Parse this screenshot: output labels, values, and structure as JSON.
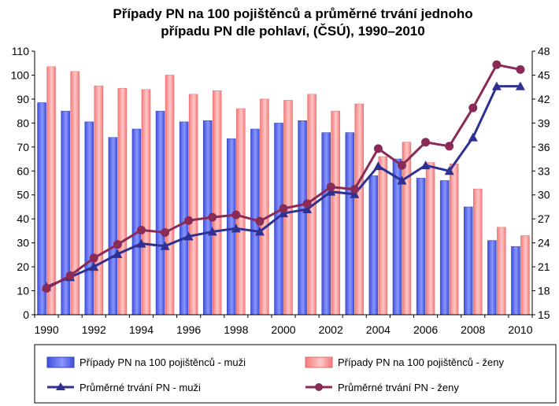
{
  "chart_data": {
    "type": "bar",
    "title_line1": "Případy PN na 100 pojištěnců a průměrné trvání jednoho",
    "title_line2": "případu PN dle pohlaví, (ČSÚ), 1990–2010",
    "x": [
      1990,
      1991,
      1992,
      1993,
      1994,
      1995,
      1996,
      1997,
      1998,
      1999,
      2000,
      2001,
      2002,
      2003,
      2004,
      2005,
      2006,
      2007,
      2008,
      2009,
      2010
    ],
    "x_tick_labels": [
      "1990",
      "1992",
      "1994",
      "1996",
      "1998",
      "2000",
      "2002",
      "2004",
      "2006",
      "2008",
      "2010"
    ],
    "y_left": {
      "min": 0,
      "max": 110,
      "step": 10,
      "ticks": [
        "0",
        "10",
        "20",
        "30",
        "40",
        "50",
        "60",
        "70",
        "80",
        "90",
        "100",
        "110"
      ]
    },
    "y_right": {
      "min": 15,
      "max": 48,
      "step": 3,
      "ticks": [
        "15",
        "18",
        "21",
        "24",
        "27",
        "30",
        "33",
        "36",
        "39",
        "42",
        "45",
        "48"
      ]
    },
    "grid": false,
    "legend_position": "bottom",
    "series": [
      {
        "name": "Případy PN na 100 pojištěnců - muži",
        "kind": "bar",
        "axis": "left",
        "color": "#5a6fe8",
        "values": [
          88.5,
          85,
          80.5,
          74,
          77.5,
          85,
          80.5,
          81,
          73.5,
          77.5,
          80,
          81,
          76,
          76,
          58,
          65,
          57,
          56,
          45,
          31,
          28.5
        ]
      },
      {
        "name": "Případy PN na 100 pojištěnců - ženy",
        "kind": "bar",
        "axis": "left",
        "color": "#ff9a9a",
        "values": [
          103.5,
          101.5,
          95.5,
          94.5,
          94,
          100,
          92,
          93.5,
          86,
          90,
          89.5,
          92,
          85,
          88,
          66,
          72,
          63.5,
          63,
          52.5,
          36.5,
          33
        ]
      },
      {
        "name": "Průměrné trvání PN - muži",
        "kind": "line",
        "axis": "right",
        "color": "#2e3192",
        "marker": "triangle",
        "values": [
          18.5,
          19.7,
          21.0,
          22.6,
          23.9,
          23.6,
          24.8,
          25.4,
          25.8,
          25.4,
          27.7,
          28.2,
          30.4,
          30.1,
          33.6,
          31.8,
          33.7,
          33.0,
          37.2,
          43.6,
          43.6
        ]
      },
      {
        "name": "Průměrné trvání PN - ženy",
        "kind": "line",
        "axis": "right",
        "color": "#8a2a56",
        "marker": "circle",
        "values": [
          18.3,
          19.9,
          22.1,
          23.8,
          25.6,
          25.3,
          26.8,
          27.2,
          27.5,
          26.7,
          28.3,
          28.9,
          31.0,
          30.7,
          35.8,
          33.7,
          36.6,
          36.1,
          40.9,
          46.3,
          45.7
        ]
      }
    ]
  }
}
